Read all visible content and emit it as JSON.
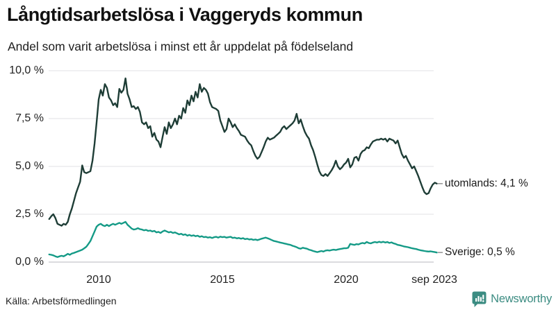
{
  "header": {
    "title": "Långtidsarbetslösa i Vaggeryds kommun",
    "subtitle": "Andel som varit arbetslösa i minst ett år uppdelat på födelseland"
  },
  "footer": {
    "source": "Källa: Arbetsförmedlingen",
    "brand": "Newsworthy"
  },
  "colors": {
    "utomlands_line": "#1e3d36",
    "sverige_line": "#149a86",
    "gridline": "#e7e7ea",
    "axis_line": "#cfcfd4",
    "label_text": "#1a1a1a",
    "brand_teal": "#3c8c82"
  },
  "chart_data": {
    "type": "line",
    "title": "Långtidsarbetslösa i Vaggeryds kommun",
    "subtitle": "Andel som varit arbetslösa i minst ett år uppdelat på födelseland",
    "unit": "%",
    "grid": true,
    "legend_position": "end-of-line",
    "ylim": [
      0,
      10
    ],
    "y_ticks": [
      {
        "label": "0,0 %",
        "value": 0
      },
      {
        "label": "2,5 %",
        "value": 2.5
      },
      {
        "label": "5,0 %",
        "value": 5
      },
      {
        "label": "7,5 %",
        "value": 7.5
      },
      {
        "label": "10,0 %",
        "value": 10
      }
    ],
    "x_ticks": [
      {
        "label": "2010",
        "t": 2010
      },
      {
        "label": "2015",
        "t": 2015
      },
      {
        "label": "2020",
        "t": 2020
      },
      {
        "label": "sep 2023",
        "t": 2023.667
      }
    ],
    "x_start_year": 2008,
    "points_per_year": 12,
    "x_end": "sep 2023",
    "series": [
      {
        "name": "utomlands",
        "end_label": "utomlands: 4,1 %",
        "end_value": 4.1,
        "color": "#1e3d36",
        "values": [
          2.25,
          2.4,
          2.5,
          2.3,
          2.0,
          1.95,
          1.9,
          2.0,
          1.95,
          2.1,
          2.5,
          2.8,
          3.2,
          3.6,
          3.9,
          4.2,
          5.05,
          4.7,
          4.65,
          4.7,
          4.75,
          5.3,
          6.2,
          7.3,
          8.5,
          9.0,
          8.7,
          9.3,
          9.1,
          8.6,
          8.45,
          8.2,
          8.3,
          8.1,
          9.05,
          8.85,
          9.0,
          9.6,
          8.8,
          8.5,
          8.1,
          8.15,
          8.0,
          8.1,
          7.85,
          7.3,
          7.2,
          7.3,
          7.0,
          7.1,
          6.55,
          6.75,
          6.4,
          6.3,
          6.0,
          6.55,
          7.05,
          6.7,
          7.3,
          7.0,
          7.2,
          7.5,
          7.2,
          7.65,
          7.5,
          8.05,
          7.8,
          8.45,
          8.2,
          8.7,
          8.4,
          8.9,
          8.6,
          9.3,
          8.9,
          9.1,
          9.0,
          8.8,
          8.35,
          8.1,
          8.05,
          8.0,
          7.9,
          7.4,
          7.1,
          6.8,
          6.95,
          7.5,
          7.3,
          7.05,
          7.2,
          7.0,
          6.85,
          6.65,
          6.6,
          6.55,
          6.35,
          6.2,
          6.1,
          5.8,
          5.55,
          5.4,
          5.5,
          5.75,
          6.0,
          6.3,
          6.5,
          6.4,
          6.45,
          6.5,
          6.6,
          6.7,
          6.8,
          7.0,
          7.1,
          6.95,
          7.05,
          7.15,
          7.25,
          7.4,
          7.75,
          7.25,
          7.45,
          7.1,
          6.8,
          6.6,
          6.45,
          6.1,
          5.85,
          5.5,
          5.1,
          4.75,
          4.55,
          4.5,
          4.6,
          4.5,
          4.65,
          4.8,
          5.0,
          5.3,
          5.0,
          4.85,
          4.95,
          5.1,
          5.2,
          5.4,
          4.95,
          5.1,
          5.45,
          5.5,
          5.3,
          5.65,
          5.8,
          5.85,
          6.0,
          5.95,
          6.15,
          6.3,
          6.35,
          6.4,
          6.4,
          6.45,
          6.4,
          6.45,
          6.3,
          6.45,
          6.4,
          6.35,
          6.2,
          6.35,
          6.0,
          5.65,
          5.45,
          5.55,
          5.3,
          5.1,
          4.9,
          5.0,
          4.75,
          4.5,
          4.2,
          3.9,
          3.65,
          3.55,
          3.6,
          3.85,
          4.05,
          4.15,
          4.1
        ]
      },
      {
        "name": "Sverige",
        "end_label": "Sverige: 0,5 %",
        "end_value": 0.5,
        "color": "#149a86",
        "values": [
          0.4,
          0.38,
          0.35,
          0.3,
          0.26,
          0.3,
          0.33,
          0.3,
          0.36,
          0.43,
          0.38,
          0.45,
          0.48,
          0.52,
          0.56,
          0.6,
          0.65,
          0.72,
          0.8,
          0.95,
          1.1,
          1.35,
          1.6,
          1.85,
          1.95,
          2.0,
          1.92,
          1.88,
          1.95,
          1.88,
          1.95,
          2.0,
          1.95,
          2.0,
          2.05,
          2.0,
          2.05,
          2.1,
          1.95,
          1.85,
          1.75,
          1.7,
          1.72,
          1.77,
          1.72,
          1.7,
          1.66,
          1.68,
          1.63,
          1.65,
          1.6,
          1.63,
          1.55,
          1.58,
          1.52,
          1.6,
          1.65,
          1.6,
          1.55,
          1.58,
          1.52,
          1.55,
          1.5,
          1.45,
          1.48,
          1.42,
          1.45,
          1.38,
          1.42,
          1.37,
          1.4,
          1.35,
          1.38,
          1.32,
          1.35,
          1.3,
          1.32,
          1.28,
          1.3,
          1.26,
          1.3,
          1.32,
          1.28,
          1.33,
          1.3,
          1.32,
          1.28,
          1.3,
          1.32,
          1.26,
          1.28,
          1.24,
          1.26,
          1.22,
          1.25,
          1.2,
          1.22,
          1.18,
          1.2,
          1.16,
          1.18,
          1.15,
          1.18,
          1.22,
          1.25,
          1.28,
          1.24,
          1.2,
          1.15,
          1.1,
          1.08,
          1.05,
          1.02,
          1.0,
          0.97,
          0.95,
          0.92,
          0.9,
          0.85,
          0.82,
          0.78,
          0.72,
          0.7,
          0.75,
          0.72,
          0.7,
          0.65,
          0.62,
          0.58,
          0.55,
          0.52,
          0.55,
          0.58,
          0.55,
          0.6,
          0.62,
          0.6,
          0.63,
          0.65,
          0.63,
          0.66,
          0.68,
          0.7,
          0.72,
          0.72,
          0.75,
          0.95,
          0.92,
          0.9,
          0.94,
          0.92,
          0.97,
          1.0,
          0.97,
          1.05,
          1.0,
          0.98,
          1.02,
          1.05,
          1.02,
          1.06,
          1.03,
          1.06,
          1.02,
          1.05,
          1.0,
          1.03,
          0.98,
          0.95,
          0.9,
          0.88,
          0.85,
          0.82,
          0.8,
          0.78,
          0.75,
          0.72,
          0.7,
          0.68,
          0.65,
          0.62,
          0.6,
          0.58,
          0.56,
          0.55,
          0.56,
          0.54,
          0.52,
          0.5
        ]
      }
    ]
  }
}
